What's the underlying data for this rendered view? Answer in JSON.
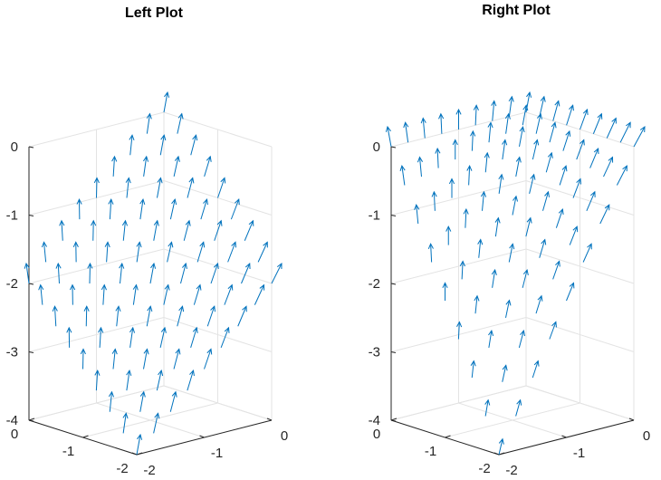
{
  "colors": {
    "arrow": "#0072bd",
    "axis": "#262626",
    "grid": "#e3e3e3"
  },
  "chart_data": [
    {
      "type": "quiver3d",
      "title": "Left Plot",
      "xlabel": "",
      "ylabel": "",
      "zlabel": "",
      "x_ticks": [
        "0",
        "-1",
        "-2"
      ],
      "y_ticks": [
        "0",
        "-1",
        "-2"
      ],
      "z_ticks": [
        "0",
        "-1",
        "-2",
        "-3",
        "-4"
      ],
      "xlim": [
        -2,
        0
      ],
      "ylim": [
        -2,
        0
      ],
      "zlim": [
        -4,
        0
      ],
      "grid": true,
      "surface": "z = x + y",
      "x": [
        0,
        -0.25,
        -0.5,
        -0.75,
        -1,
        -1.25,
        -1.5,
        -1.75,
        -2
      ],
      "y": [
        0,
        -0.25,
        -0.5,
        -0.75,
        -1,
        -1.25,
        -1.5,
        -1.75,
        -2
      ],
      "vector": "upward normal, tilting outward toward the x and y edges"
    },
    {
      "type": "quiver3d",
      "title": "Right Plot",
      "xlabel": "",
      "ylabel": "",
      "zlabel": "",
      "x_ticks": [
        "0",
        "-1",
        "-2"
      ],
      "y_ticks": [
        "0",
        "-1",
        "-2"
      ],
      "z_ticks": [
        "0",
        "-1",
        "-2",
        "-3",
        "-4"
      ],
      "xlim": [
        -2,
        0
      ],
      "ylim": [
        -2,
        0
      ],
      "zlim": [
        -4,
        0
      ],
      "grid": true,
      "surface": "z = -x*y",
      "x": [
        0,
        -0.25,
        -0.5,
        -0.75,
        -1,
        -1.25,
        -1.5,
        -1.75,
        -2
      ],
      "y": [
        0,
        -0.25,
        -0.5,
        -0.75,
        -1,
        -1.25,
        -1.5,
        -1.75,
        -2
      ],
      "vector": "upward normal, tilting more strongly toward the far rim"
    }
  ]
}
